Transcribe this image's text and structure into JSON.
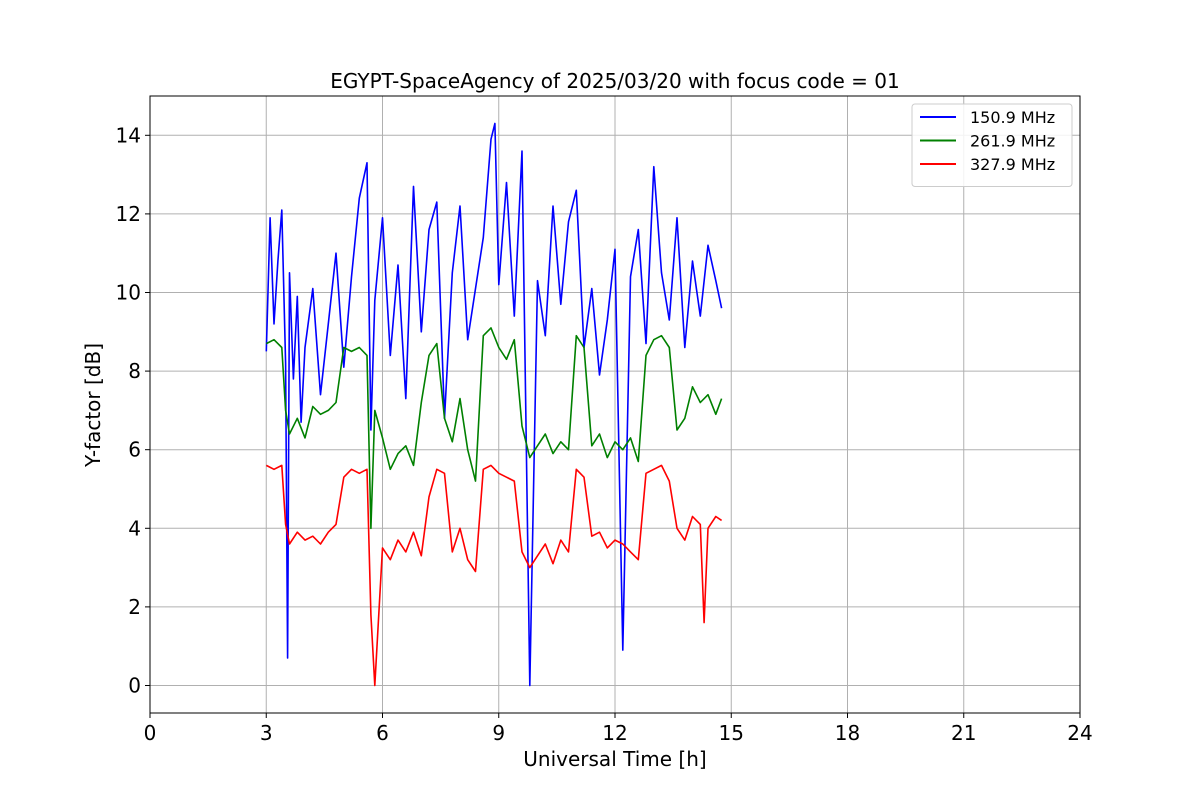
{
  "chart_data": {
    "type": "line",
    "title": "EGYPT-SpaceAgency of 2025/03/20 with focus code = 01",
    "xlabel": "Universal Time [h]",
    "ylabel": "Y-factor [dB]",
    "xlim": [
      0,
      24
    ],
    "ylim": [
      -0.7,
      15
    ],
    "xticks": [
      0,
      3,
      6,
      9,
      12,
      15,
      18,
      21,
      24
    ],
    "yticks": [
      0,
      2,
      4,
      6,
      8,
      10,
      12,
      14
    ],
    "grid": true,
    "legend_position": "top-right",
    "series": [
      {
        "name": "150.9 MHz",
        "color": "#0000ff",
        "x": [
          3.0,
          3.1,
          3.2,
          3.3,
          3.4,
          3.5,
          3.55,
          3.6,
          3.7,
          3.8,
          3.9,
          4.0,
          4.2,
          4.4,
          4.6,
          4.8,
          5.0,
          5.2,
          5.4,
          5.6,
          5.7,
          5.8,
          6.0,
          6.2,
          6.4,
          6.6,
          6.8,
          7.0,
          7.2,
          7.4,
          7.6,
          7.8,
          8.0,
          8.2,
          8.4,
          8.6,
          8.8,
          8.9,
          9.0,
          9.2,
          9.4,
          9.6,
          9.8,
          10.0,
          10.2,
          10.4,
          10.6,
          10.8,
          11.0,
          11.2,
          11.4,
          11.6,
          11.8,
          12.0,
          12.2,
          12.4,
          12.6,
          12.8,
          13.0,
          13.2,
          13.4,
          13.6,
          13.8,
          14.0,
          14.2,
          14.4,
          14.6,
          14.75
        ],
        "values": [
          8.5,
          11.9,
          9.2,
          10.8,
          12.1,
          8.2,
          0.7,
          10.5,
          7.8,
          9.9,
          6.7,
          8.6,
          10.1,
          7.4,
          9.2,
          11.0,
          8.1,
          10.4,
          12.4,
          13.3,
          6.5,
          9.8,
          11.9,
          8.4,
          10.7,
          7.3,
          12.7,
          9.0,
          11.6,
          12.3,
          6.8,
          10.5,
          12.2,
          8.8,
          10.1,
          11.4,
          13.9,
          14.3,
          10.2,
          12.8,
          9.4,
          13.6,
          0.0,
          10.3,
          8.9,
          12.2,
          9.7,
          11.8,
          12.6,
          8.6,
          10.1,
          7.9,
          9.3,
          11.1,
          0.9,
          10.4,
          11.6,
          8.7,
          13.2,
          10.5,
          9.3,
          11.9,
          8.6,
          10.8,
          9.4,
          11.2,
          10.3,
          9.6
        ]
      },
      {
        "name": "261.9 MHz",
        "color": "#008000",
        "x": [
          3.0,
          3.2,
          3.4,
          3.5,
          3.6,
          3.8,
          4.0,
          4.2,
          4.4,
          4.6,
          4.8,
          5.0,
          5.2,
          5.4,
          5.6,
          5.7,
          5.8,
          6.0,
          6.2,
          6.4,
          6.6,
          6.8,
          7.0,
          7.2,
          7.4,
          7.6,
          7.8,
          8.0,
          8.2,
          8.4,
          8.6,
          8.8,
          9.0,
          9.2,
          9.4,
          9.6,
          9.8,
          10.0,
          10.2,
          10.4,
          10.6,
          10.8,
          11.0,
          11.2,
          11.4,
          11.6,
          11.8,
          12.0,
          12.2,
          12.4,
          12.6,
          12.8,
          13.0,
          13.2,
          13.4,
          13.6,
          13.8,
          14.0,
          14.2,
          14.4,
          14.6,
          14.75
        ],
        "values": [
          8.7,
          8.8,
          8.6,
          7.0,
          6.4,
          6.8,
          6.3,
          7.1,
          6.9,
          7.0,
          7.2,
          8.6,
          8.5,
          8.6,
          8.4,
          4.0,
          7.0,
          6.3,
          5.5,
          5.9,
          6.1,
          5.6,
          7.2,
          8.4,
          8.7,
          6.8,
          6.2,
          7.3,
          6.0,
          5.2,
          8.9,
          9.1,
          8.6,
          8.3,
          8.8,
          6.6,
          5.8,
          6.1,
          6.4,
          5.9,
          6.2,
          6.0,
          8.9,
          8.6,
          6.1,
          6.4,
          5.8,
          6.2,
          6.0,
          6.3,
          5.7,
          8.4,
          8.8,
          8.9,
          8.6,
          6.5,
          6.8,
          7.6,
          7.2,
          7.4,
          6.9,
          7.3
        ]
      },
      {
        "name": "327.9 MHz",
        "color": "#ff0000",
        "x": [
          3.0,
          3.2,
          3.4,
          3.5,
          3.6,
          3.8,
          4.0,
          4.2,
          4.4,
          4.6,
          4.8,
          5.0,
          5.2,
          5.4,
          5.6,
          5.7,
          5.8,
          6.0,
          6.2,
          6.4,
          6.6,
          6.8,
          7.0,
          7.2,
          7.4,
          7.6,
          7.8,
          8.0,
          8.2,
          8.4,
          8.6,
          8.8,
          9.0,
          9.2,
          9.4,
          9.6,
          9.8,
          10.0,
          10.2,
          10.4,
          10.6,
          10.8,
          11.0,
          11.2,
          11.4,
          11.6,
          11.8,
          12.0,
          12.2,
          12.4,
          12.6,
          12.8,
          13.0,
          13.2,
          13.4,
          13.6,
          13.8,
          14.0,
          14.2,
          14.3,
          14.4,
          14.6,
          14.75
        ],
        "values": [
          5.6,
          5.5,
          5.6,
          4.1,
          3.6,
          3.9,
          3.7,
          3.8,
          3.6,
          3.9,
          4.1,
          5.3,
          5.5,
          5.4,
          5.5,
          1.8,
          0.0,
          3.5,
          3.2,
          3.7,
          3.4,
          3.9,
          3.3,
          4.8,
          5.5,
          5.4,
          3.4,
          4.0,
          3.2,
          2.9,
          5.5,
          5.6,
          5.4,
          5.3,
          5.2,
          3.4,
          3.0,
          3.3,
          3.6,
          3.1,
          3.7,
          3.4,
          5.5,
          5.3,
          3.8,
          3.9,
          3.5,
          3.7,
          3.6,
          3.4,
          3.2,
          5.4,
          5.5,
          5.6,
          5.2,
          4.0,
          3.7,
          4.3,
          4.1,
          1.6,
          4.0,
          4.3,
          4.2
        ]
      }
    ]
  }
}
